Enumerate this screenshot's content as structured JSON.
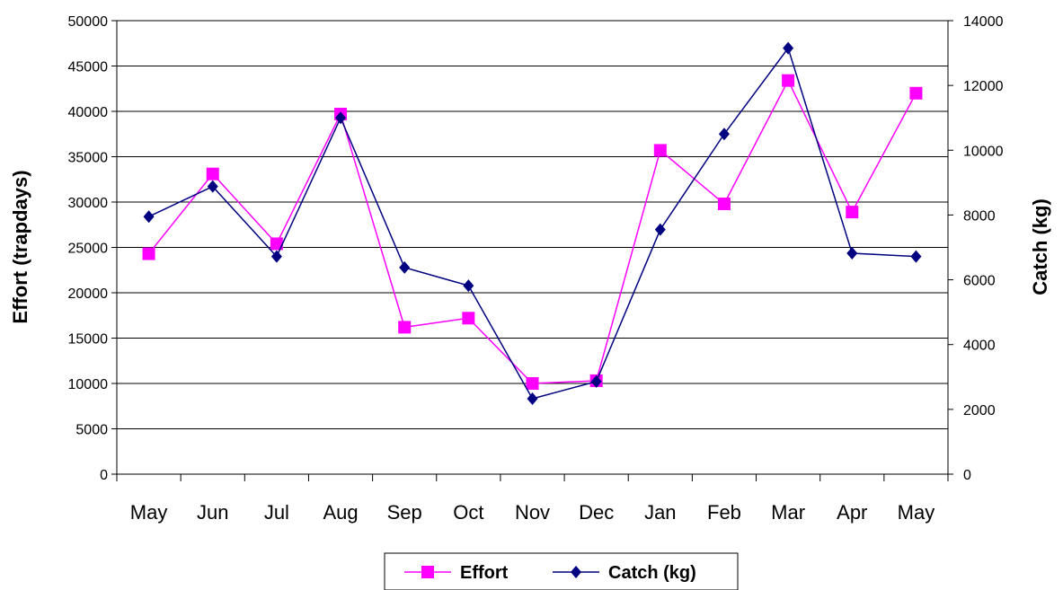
{
  "chart_data": {
    "type": "line",
    "categories": [
      "May",
      "Jun",
      "Jul",
      "Aug",
      "Sep",
      "Oct",
      "Nov",
      "Dec",
      "Jan",
      "Feb",
      "Mar",
      "Apr",
      "May"
    ],
    "series": [
      {
        "name": "Effort",
        "axis": "left",
        "color": "#ff00ff",
        "marker": "square",
        "values": [
          24300,
          33100,
          25400,
          39700,
          16200,
          17200,
          10000,
          10300,
          35700,
          29800,
          43400,
          28900,
          42000
        ]
      },
      {
        "name": "Catch (kg)",
        "axis": "right",
        "color": "#000080",
        "marker": "diamond",
        "values": [
          7950,
          8880,
          6720,
          11000,
          6380,
          5820,
          2330,
          2860,
          7550,
          10500,
          13150,
          6820,
          6720
        ]
      }
    ],
    "ylabel": "Effort (trapdays)",
    "y2label": "Catch (kg)",
    "ylim": [
      0,
      50000
    ],
    "y2lim": [
      0,
      14000
    ],
    "yticks": [
      0,
      5000,
      10000,
      15000,
      20000,
      25000,
      30000,
      35000,
      40000,
      45000,
      50000
    ],
    "y2ticks": [
      0,
      2000,
      4000,
      6000,
      8000,
      10000,
      12000,
      14000
    ],
    "grid": "horizontal",
    "legend": "bottom-center"
  }
}
